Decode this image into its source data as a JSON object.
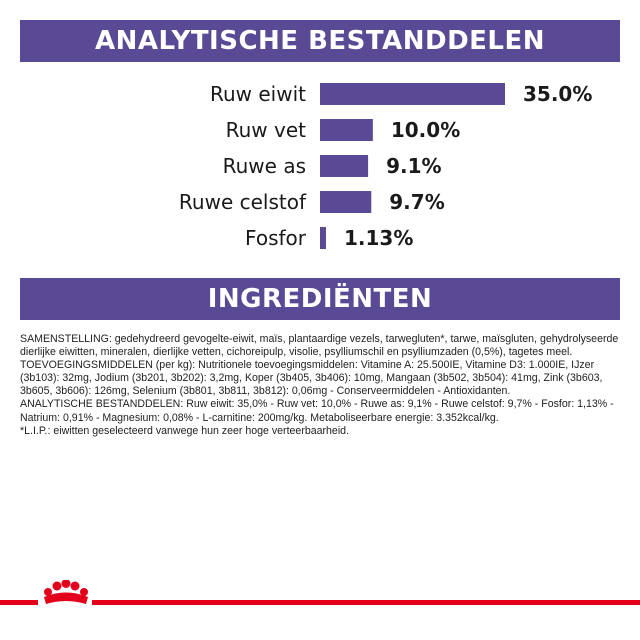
{
  "header": {
    "title": "ANALYTISCHE BESTANDDELEN"
  },
  "chart_data": {
    "type": "bar",
    "orientation": "horizontal",
    "categories": [
      "Ruw eiwit",
      "Ruw vet",
      "Ruwe as",
      "Ruwe celstof",
      "Fosfor"
    ],
    "values": [
      35.0,
      10.0,
      9.1,
      9.7,
      1.13
    ],
    "value_labels": [
      "35.0%",
      "10.0%",
      "9.1%",
      "9.7%",
      "1.13%"
    ],
    "bar_color": "#5a4a96",
    "title": "ANALYTISCHE BESTANDDELEN",
    "xlabel": "",
    "ylabel": "",
    "grid": false
  },
  "ingredients": {
    "title": "INGREDIËNTEN",
    "paragraphs": [
      "SAMENSTELLING: gedehydreerd gevogelte-eiwit, maïs, plantaardige vezels, tarwegluten*, tarwe, maïsgluten, gehydrolyseerde dierlijke eiwitten, mineralen, dierlijke vetten, cichoreipulp, visolie, psylliumschil en psylliumzaden (0,5%), tagetes meel.",
      "TOEVOEGINGSMIDDELEN (per kg): Nutritionele toevoegingsmiddelen: Vitamine A: 25.500IE, Vitamine D3: 1.000IE, IJzer (3b103): 32mg, Jodium (3b201, 3b202): 3,2mg, Koper (3b405, 3b406): 10mg, Mangaan (3b502, 3b504): 41mg, Zink (3b603, 3b605, 3b606): 126mg, Selenium (3b801, 3b811, 3b812): 0,06mg - Conserveermiddelen - Antioxidanten.",
      "ANALYTISCHE BESTANDDELEN: Ruw eiwit: 35,0% - Ruw vet: 10,0% - Ruwe as: 9,1% - Ruwe celstof: 9,7% - Fosfor: 1,13% - Natrium: 0,91% - Magnesium: 0,08% - L-carnitine: 200mg/kg. Metaboliseerbare energie: 3.352kcal/kg.",
      "*L.I.P.: eiwitten geselecteerd vanwege hun zeer hoge verteerbaarheid."
    ]
  },
  "brand": {
    "logo_icon": "royal-canin-crown-icon",
    "accent_color": "#e2001a"
  }
}
